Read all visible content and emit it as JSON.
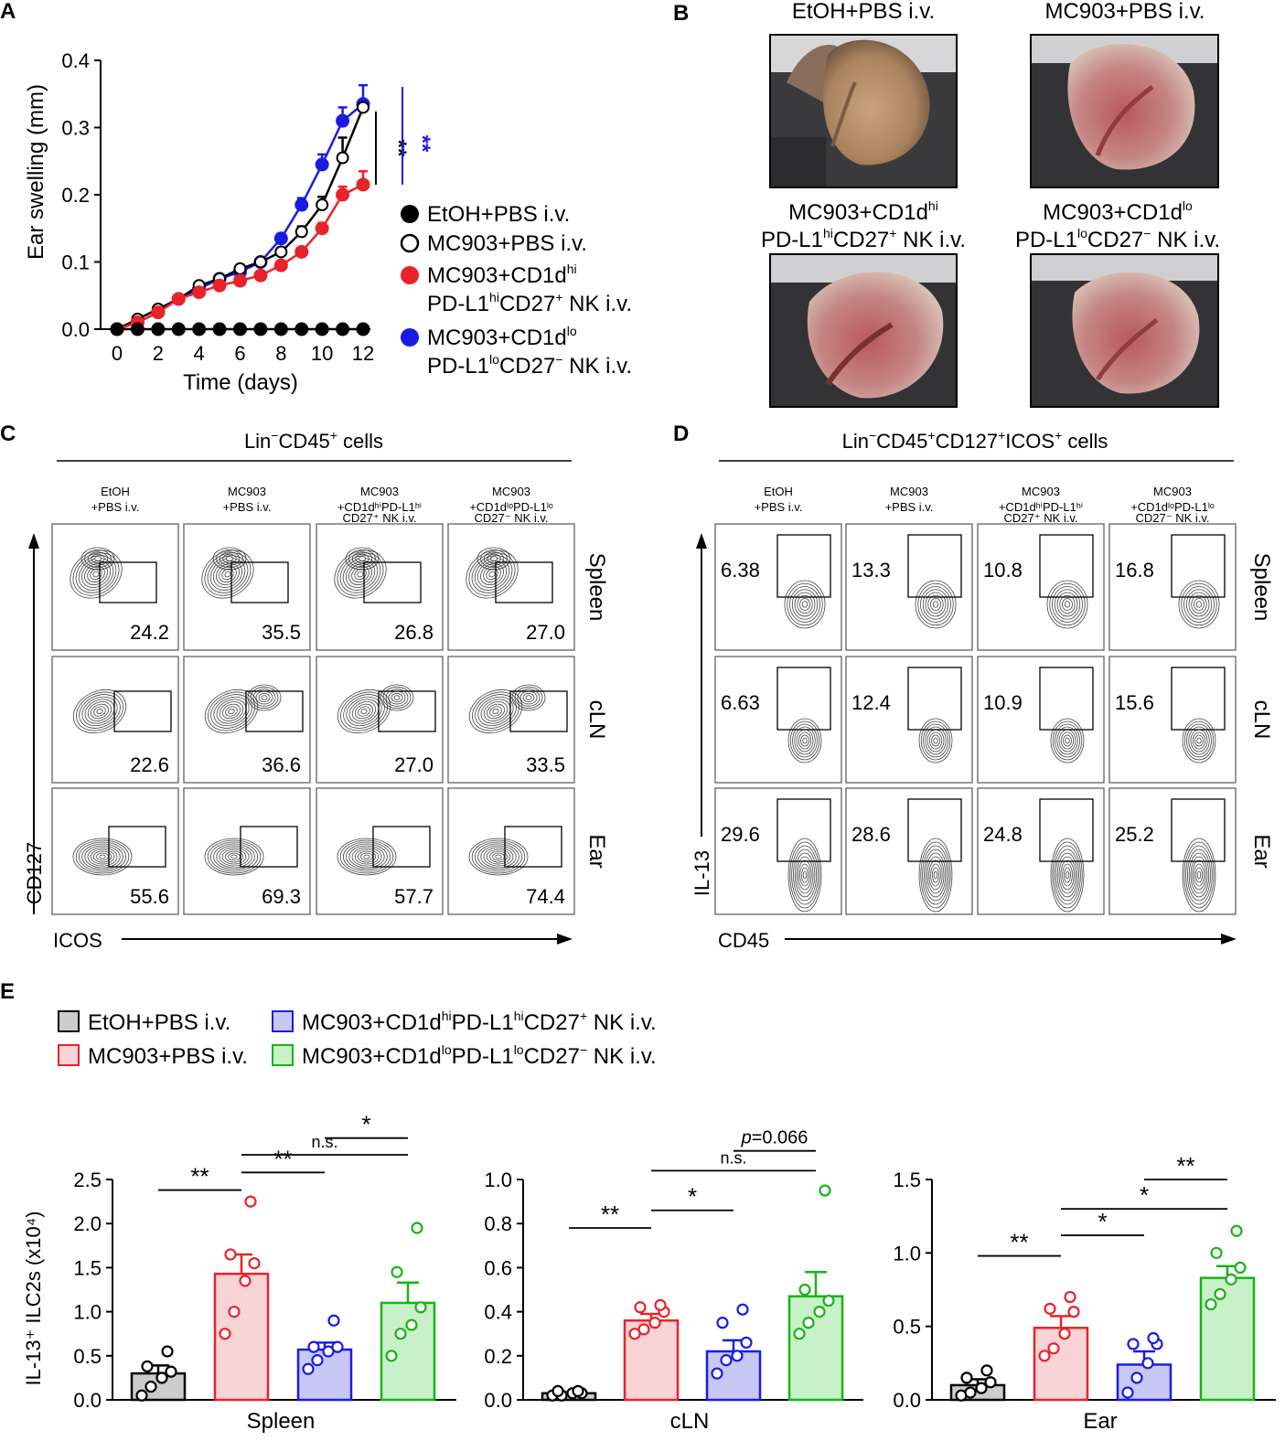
{
  "colors": {
    "black": "#000000",
    "red": "#e8232a",
    "blue": "#1b1be6",
    "green": "#17b417",
    "gray": "#cccccc",
    "red_fill": "#f8d4d6",
    "blue_fill": "#c7c8f3",
    "green_fill": "#c9f1c9"
  },
  "panelA": {
    "letter": "A",
    "ylabel": "Ear swelling (mm)",
    "xlabel": "Time (days)",
    "sig_black": "**",
    "sig_blue": "**",
    "legend": [
      {
        "key": "etoh",
        "line1": "EtOH+PBS i.v.",
        "line2": ""
      },
      {
        "key": "mc903",
        "line1": "MC903+PBS i.v.",
        "line2": ""
      },
      {
        "key": "hi",
        "line1": "MC903+CD1d",
        "sup1": "hi",
        "line2a": "PD-L1",
        "sup2": "hi",
        "line2b": "CD27",
        "sup3": "+",
        "line2c": " NK i.v."
      },
      {
        "key": "lo",
        "line1": "MC903+CD1d",
        "sup1": "lo",
        "line2a": "PD-L1",
        "sup2": "lo",
        "line2b": "CD27",
        "sup3": "−",
        "line2c": " NK i.v."
      }
    ]
  },
  "panelB": {
    "letter": "B",
    "photos": [
      {
        "title": "EtOH+PBS i.v."
      },
      {
        "title": "MC903+PBS i.v."
      },
      {
        "title_l1": "MC903+CD1d",
        "sup1": "hi",
        "title_l2a": "PD-L1",
        "sup2": "hi",
        "title_l2b": "CD27",
        "sup3": "+",
        "title_l2c": " NK i.v."
      },
      {
        "title_l1": "MC903+CD1d",
        "sup1": "lo",
        "title_l2a": "PD-L1",
        "sup2": "lo",
        "title_l2b": "CD27",
        "sup3": "−",
        "title_l2c": " NK i.v."
      }
    ]
  },
  "panelC": {
    "letter": "C",
    "title_a": "Lin",
    "title_sup1": "−",
    "title_b": "CD45",
    "title_sup2": "+",
    "title_c": " cells",
    "ylabel": "CD127",
    "xlabel": "ICOS",
    "cols": [
      {
        "l1": "EtOH",
        "l2": "+PBS i.v.",
        "l3": ""
      },
      {
        "l1": "MC903",
        "l2": "+PBS i.v.",
        "l3": ""
      },
      {
        "l1": "MC903",
        "l2": "+CD1dʰⁱPD-L1ʰⁱ",
        "l3": "CD27⁺ NK i.v."
      },
      {
        "l1": "MC903",
        "l2": "+CD1dˡᵒPD-L1ˡᵒ",
        "l3": "CD27⁻ NK i.v."
      }
    ],
    "rows": [
      "Spleen",
      "cLN",
      "Ear"
    ],
    "values": [
      [
        "24.2",
        "35.5",
        "26.8",
        "27.0"
      ],
      [
        "22.6",
        "36.6",
        "27.0",
        "33.5"
      ],
      [
        "55.6",
        "69.3",
        "57.7",
        "74.4"
      ]
    ]
  },
  "panelD": {
    "letter": "D",
    "title_a": "Lin",
    "title_sup1": "−",
    "title_b": "CD45",
    "title_sup2": "+",
    "title_c": "CD127",
    "title_sup3": "+",
    "title_d": "ICOS",
    "title_sup4": "+",
    "title_e": " cells",
    "ylabel": "IL-13",
    "xlabel": "CD45",
    "cols": [
      {
        "l1": "EtOH",
        "l2": "+PBS i.v.",
        "l3": ""
      },
      {
        "l1": "MC903",
        "l2": "+PBS i.v.",
        "l3": ""
      },
      {
        "l1": "MC903",
        "l2": "+CD1dʰⁱPD-L1ʰⁱ",
        "l3": "CD27⁺ NK i.v."
      },
      {
        "l1": "MC903",
        "l2": "+CD1dˡᵒPD-L1ˡᵒ",
        "l3": "CD27⁻ NK i.v."
      }
    ],
    "rows": [
      "Spleen",
      "cLN",
      "Ear"
    ],
    "values": [
      [
        "6.38",
        "13.3",
        "10.8",
        "16.8"
      ],
      [
        "6.63",
        "12.4",
        "10.9",
        "15.6"
      ],
      [
        "29.6",
        "28.6",
        "24.8",
        "25.2"
      ]
    ]
  },
  "panelE": {
    "letter": "E",
    "ylabel": "IL-13⁺ ILC2s (x10⁴)",
    "legend": [
      {
        "key": "etoh",
        "text": "EtOH+PBS i.v."
      },
      {
        "key": "mc903",
        "text": "MC903+PBS i.v."
      },
      {
        "key": "hi",
        "a": "MC903+CD1d",
        "s1": "hi",
        "b": "PD-L1",
        "s2": "hi",
        "c": "CD27",
        "s3": "+",
        "d": " NK i.v."
      },
      {
        "key": "lo",
        "a": "MC903+CD1d",
        "s1": "lo",
        "b": "PD-L1",
        "s2": "lo",
        "c": "CD27",
        "s3": "−",
        "d": " NK i.v."
      }
    ]
  },
  "chart_data": [
    {
      "type": "line",
      "title": "",
      "xlabel": "Time (days)",
      "ylabel": "Ear swelling (mm)",
      "xlim": [
        0,
        12
      ],
      "ylim": [
        0,
        0.4
      ],
      "xticks": [
        0,
        2,
        4,
        6,
        8,
        10,
        12
      ],
      "yticks": [
        0.0,
        0.1,
        0.2,
        0.3,
        0.4
      ],
      "x": [
        0,
        1,
        2,
        3,
        4,
        5,
        6,
        7,
        8,
        9,
        10,
        11,
        12
      ],
      "series": [
        {
          "name": "EtOH+PBS i.v.",
          "style": "filled-black",
          "values": [
            0,
            0,
            0,
            0,
            0,
            0,
            0,
            0,
            0,
            0,
            0,
            0,
            0
          ],
          "err": [
            0,
            0,
            0,
            0,
            0,
            0,
            0,
            0,
            0,
            0,
            0,
            0,
            0
          ]
        },
        {
          "name": "MC903+PBS i.v.",
          "style": "open-black",
          "values": [
            0,
            0.015,
            0.03,
            0.045,
            0.065,
            0.075,
            0.09,
            0.1,
            0.115,
            0.145,
            0.185,
            0.255,
            0.33
          ],
          "err": [
            0,
            0.003,
            0.003,
            0.004,
            0.004,
            0.004,
            0.005,
            0.005,
            0.006,
            0.008,
            0.012,
            0.03,
            0.004
          ]
        },
        {
          "name": "MC903+CD1dhiPD-L1hiCD27+ NK i.v.",
          "style": "red",
          "values": [
            0,
            0.01,
            0.025,
            0.045,
            0.055,
            0.065,
            0.072,
            0.08,
            0.095,
            0.115,
            0.15,
            0.2,
            0.215
          ],
          "err": [
            0,
            0.003,
            0.003,
            0.004,
            0.004,
            0.004,
            0.004,
            0.005,
            0.005,
            0.006,
            0.008,
            0.012,
            0.02
          ]
        },
        {
          "name": "MC903+CD1dloPD-L1loCD27− NK i.v.",
          "style": "blue",
          "values": [
            0,
            0.01,
            0.025,
            0.045,
            0.06,
            0.075,
            0.085,
            0.1,
            0.135,
            0.185,
            0.245,
            0.31,
            0.335
          ],
          "err": [
            0,
            0.003,
            0.003,
            0.004,
            0.004,
            0.004,
            0.005,
            0.005,
            0.007,
            0.01,
            0.015,
            0.02,
            0.028
          ]
        }
      ]
    },
    {
      "type": "bar",
      "title": "Spleen",
      "ylabel": "IL-13⁺ ILC2s (x10⁴)",
      "ylim": [
        0,
        2.5
      ],
      "yticks": [
        "0.0",
        "0.5",
        "1.0",
        "1.5",
        "2.0",
        "2.5"
      ],
      "categories": [
        "EtOH+PBS i.v.",
        "MC903+PBS i.v.",
        "MC903+CD1dhiPD-L1hiCD27+ NK i.v.",
        "MC903+CD1dloPD-L1loCD27− NK i.v."
      ],
      "values": [
        0.3,
        1.43,
        0.57,
        1.1
      ],
      "sem": [
        0.09,
        0.22,
        0.08,
        0.23
      ],
      "points": [
        [
          0.05,
          0.15,
          0.25,
          0.32,
          0.38,
          0.55
        ],
        [
          0.75,
          1.0,
          1.35,
          1.55,
          1.65,
          2.25
        ],
        [
          0.35,
          0.45,
          0.55,
          0.6,
          0.6,
          0.9
        ],
        [
          0.5,
          0.75,
          0.85,
          1.05,
          1.45,
          1.95
        ]
      ],
      "comparisons": [
        {
          "from": 0,
          "to": 1,
          "label": "**",
          "y": 2.38
        },
        {
          "from": 1,
          "to": 2,
          "label": "**",
          "y": 2.58
        },
        {
          "from": 1,
          "to": 3,
          "label": "n.s.",
          "y": 2.78
        },
        {
          "from": 2,
          "to": 3,
          "label": "*",
          "y": 2.97
        }
      ]
    },
    {
      "type": "bar",
      "title": "cLN",
      "ylabel": "",
      "ylim": [
        0,
        1.0
      ],
      "yticks": [
        "0.0",
        "0.2",
        "0.4",
        "0.6",
        "0.8",
        "1.0"
      ],
      "categories": [
        "EtOH+PBS i.v.",
        "MC903+PBS i.v.",
        "MC903+CD1dhiPD-L1hiCD27+ NK i.v.",
        "MC903+CD1dloPD-L1loCD27− NK i.v."
      ],
      "values": [
        0.03,
        0.36,
        0.22,
        0.47
      ],
      "sem": [
        0.005,
        0.03,
        0.05,
        0.11
      ],
      "points": [
        [
          0.02,
          0.02,
          0.03,
          0.03,
          0.04,
          0.04
        ],
        [
          0.3,
          0.32,
          0.35,
          0.4,
          0.42,
          0.43
        ],
        [
          0.12,
          0.18,
          0.2,
          0.26,
          0.35,
          0.41
        ],
        [
          0.3,
          0.35,
          0.4,
          0.45,
          0.5,
          0.95
        ]
      ],
      "comparisons": [
        {
          "from": 0,
          "to": 1,
          "label": "**",
          "y": 0.78
        },
        {
          "from": 1,
          "to": 2,
          "label": "*",
          "y": 0.86
        },
        {
          "from": 1,
          "to": 3,
          "label": "n.s.",
          "y": 1.04
        },
        {
          "from": 2,
          "to": 3,
          "label": "p=0.066",
          "y": 1.13
        }
      ]
    },
    {
      "type": "bar",
      "title": "Ear",
      "ylabel": "",
      "ylim": [
        0,
        1.5
      ],
      "yticks": [
        "0.0",
        "0.5",
        "1.0",
        "1.5"
      ],
      "categories": [
        "EtOH+PBS i.v.",
        "MC903+PBS i.v.",
        "MC903+CD1dhiPD-L1hiCD27+ NK i.v.",
        "MC903+CD1dloPD-L1loCD27− NK i.v."
      ],
      "values": [
        0.1,
        0.49,
        0.24,
        0.83
      ],
      "sem": [
        0.04,
        0.08,
        0.09,
        0.08
      ],
      "points": [
        [
          0.03,
          0.05,
          0.08,
          0.12,
          0.15,
          0.2
        ],
        [
          0.3,
          0.35,
          0.45,
          0.6,
          0.62,
          0.7
        ],
        [
          0.05,
          0.15,
          0.25,
          0.38,
          0.38,
          0.42
        ],
        [
          0.65,
          0.72,
          0.82,
          0.9,
          1.0,
          1.15
        ]
      ],
      "comparisons": [
        {
          "from": 0,
          "to": 1,
          "label": "**",
          "y": 0.98
        },
        {
          "from": 1,
          "to": 2,
          "label": "*",
          "y": 1.12
        },
        {
          "from": 1,
          "to": 3,
          "label": "*",
          "y": 1.3
        },
        {
          "from": 2,
          "to": 3,
          "label": "**",
          "y": 1.5
        }
      ]
    }
  ]
}
